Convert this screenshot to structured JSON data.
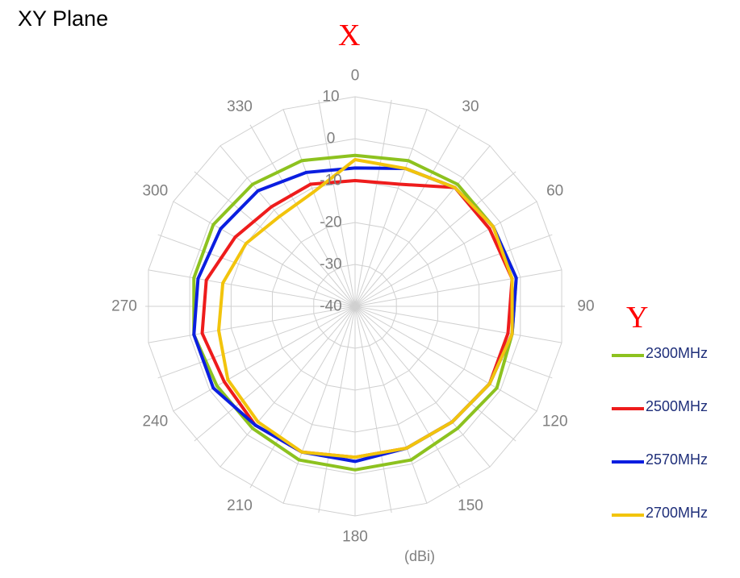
{
  "title": "XY Plane",
  "axis_letters": {
    "x": "X",
    "y": "Y"
  },
  "units": "(dBi)",
  "colors": {
    "grid": "#d0d0d0",
    "tick_text": "#7f7f7f",
    "legend_text": "#1f2f7a",
    "axis_letter": "#ff0000"
  },
  "chart_data": {
    "type": "polar-line",
    "title": "XY Plane",
    "radial_unit": "(dBi)",
    "angles": [
      0,
      20,
      40,
      60,
      80,
      100,
      120,
      140,
      160,
      180,
      200,
      220,
      240,
      260,
      280,
      300,
      320,
      340
    ],
    "angle_tick_labels": [
      {
        "angle": 0,
        "label": "0"
      },
      {
        "angle": 30,
        "label": "30"
      },
      {
        "angle": 60,
        "label": "60"
      },
      {
        "angle": 90,
        "label": "90"
      },
      {
        "angle": 120,
        "label": "120"
      },
      {
        "angle": 150,
        "label": "150"
      },
      {
        "angle": 180,
        "label": "180"
      },
      {
        "angle": 210,
        "label": "210"
      },
      {
        "angle": 240,
        "label": "240"
      },
      {
        "angle": 270,
        "label": "270"
      },
      {
        "angle": 300,
        "label": "300"
      },
      {
        "angle": 330,
        "label": "330"
      }
    ],
    "r_ticks": [
      -40,
      -30,
      -20,
      -10,
      0,
      10
    ],
    "r_tick_labels": [
      "-40",
      "-30",
      "-20",
      "-10",
      "0",
      "10"
    ],
    "r_range": [
      -40,
      10
    ],
    "grid": true,
    "legend_position": "right",
    "series": [
      {
        "name": "2300MHz",
        "color": "#8dc21f",
        "values": [
          -4,
          -3,
          -2,
          -2,
          -1,
          -2,
          -1,
          -2,
          -1,
          -1,
          -1,
          -2,
          -2,
          -1,
          -1,
          -1,
          -2,
          -3
        ]
      },
      {
        "name": "2500MHz",
        "color": "#ee1c1c",
        "values": [
          -10,
          -9,
          -3,
          -3,
          -2,
          -3,
          -3,
          -4,
          -4,
          -4,
          -3,
          -3,
          -4,
          -3,
          -4,
          -7,
          -9,
          -9
        ]
      },
      {
        "name": "2570MHz",
        "color": "#0b1ee0",
        "values": [
          -7,
          -5,
          -3,
          -2,
          -1,
          -2,
          -3,
          -4,
          -4,
          -3,
          -3,
          -3,
          -1,
          -1,
          -2,
          -3,
          -4,
          -6
        ]
      },
      {
        "name": "2700MHz",
        "color": "#f2c40c",
        "values": [
          -5,
          -5,
          -3,
          -2,
          -2,
          -2,
          -3,
          -4,
          -4,
          -4,
          -3,
          -4,
          -5,
          -7,
          -8,
          -10,
          -12,
          -11
        ]
      }
    ]
  }
}
